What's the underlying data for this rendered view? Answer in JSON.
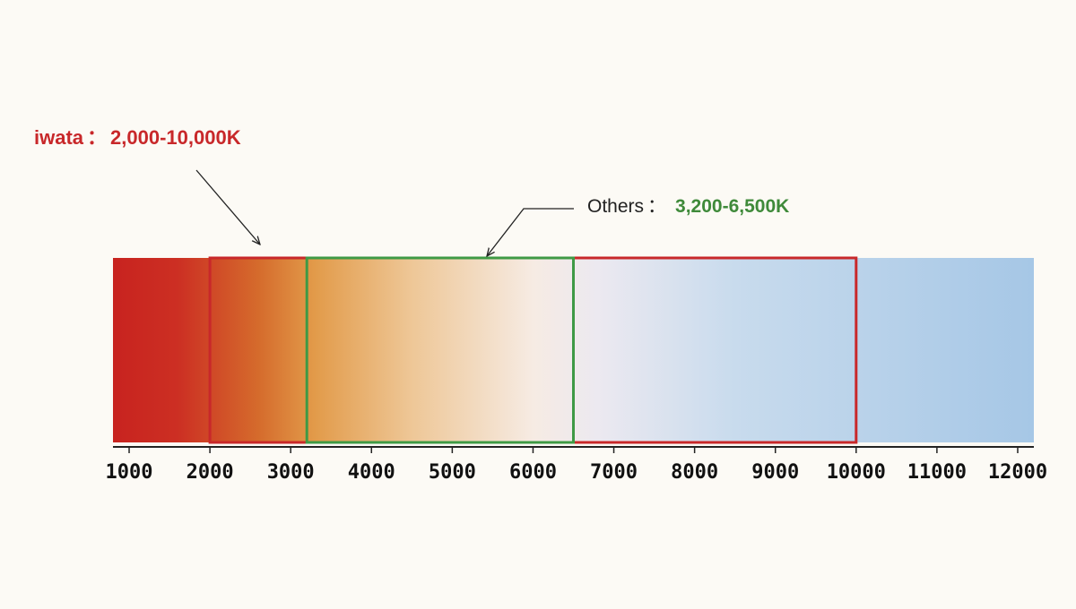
{
  "annotations": {
    "iwata": {
      "brand": "iwata",
      "separator": "：",
      "range": "2,000-10,000K"
    },
    "others": {
      "brand": "Others",
      "separator": "：",
      "range": "3,200-6,500K"
    }
  },
  "scale": {
    "unit": "K",
    "min": 800,
    "max": 12200,
    "ticks": [
      1000,
      2000,
      3000,
      4000,
      5000,
      6000,
      7000,
      8000,
      9000,
      10000,
      11000,
      12000
    ],
    "tick_labels": [
      "1000",
      "2000",
      "3000",
      "4000",
      "5000",
      "6000",
      "7000",
      "8000",
      "9000",
      "10000",
      "11000",
      "12000"
    ]
  },
  "ranges": [
    {
      "name": "iwata",
      "from": 2000,
      "to": 10000,
      "color": "#c8282a"
    },
    {
      "name": "Others",
      "from": 3200,
      "to": 6500,
      "color": "#3f9a45"
    }
  ],
  "gradient_stops": [
    {
      "kelvin": 800,
      "color": "#c8231f"
    },
    {
      "kelvin": 1600,
      "color": "#cc2f23"
    },
    {
      "kelvin": 2600,
      "color": "#d56b2c"
    },
    {
      "kelvin": 3300,
      "color": "#e29b4a"
    },
    {
      "kelvin": 4500,
      "color": "#eec797"
    },
    {
      "kelvin": 6000,
      "color": "#f6ebe3"
    },
    {
      "kelvin": 6800,
      "color": "#ece9f0"
    },
    {
      "kelvin": 8500,
      "color": "#c8dbed"
    },
    {
      "kelvin": 12200,
      "color": "#a6c7e6"
    }
  ]
}
